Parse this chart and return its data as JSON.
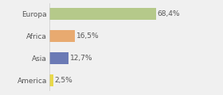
{
  "categories": [
    "Europa",
    "Africa",
    "Asia",
    "America"
  ],
  "values": [
    68.4,
    16.5,
    12.7,
    2.5
  ],
  "labels": [
    "68,4%",
    "16,5%",
    "12,7%",
    "2,5%"
  ],
  "bar_colors": [
    "#b5c98a",
    "#e8aa70",
    "#6b7ab5",
    "#e8d84a"
  ],
  "background_color": "#f0f0f0",
  "xlim": [
    0,
    90
  ],
  "label_fontsize": 6.5,
  "tick_fontsize": 6.5,
  "bar_height": 0.55
}
